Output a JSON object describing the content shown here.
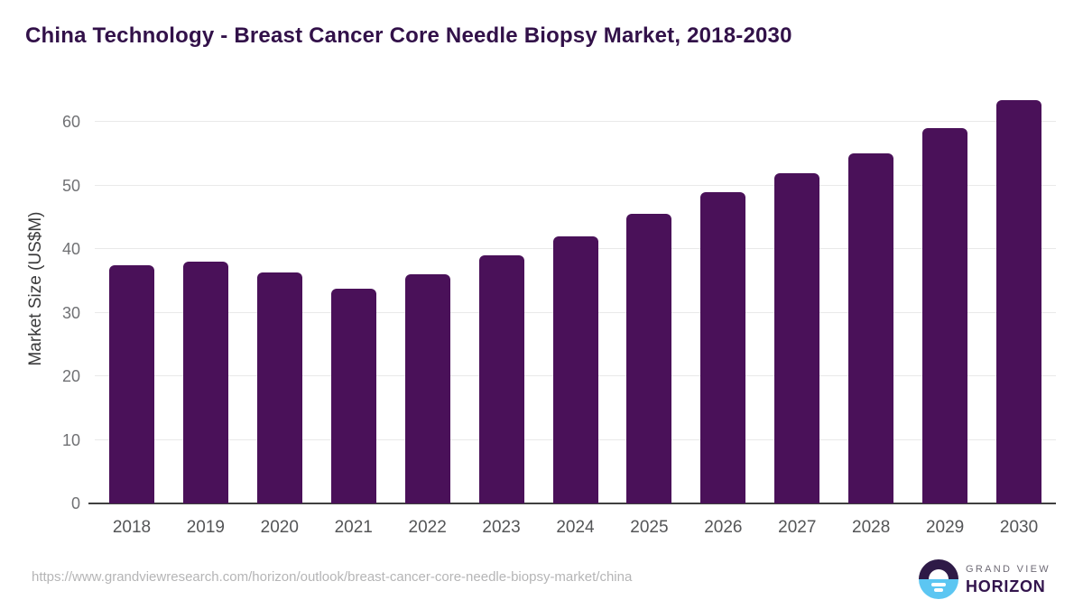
{
  "header": {
    "title": "China Technology - Breast Cancer Core Needle Biopsy Market, 2018-2030"
  },
  "chart_data": {
    "type": "bar",
    "title": "China Technology - Breast Cancer Core Needle Biopsy Market, 2018-2030",
    "categories": [
      "2018",
      "2019",
      "2020",
      "2021",
      "2022",
      "2023",
      "2024",
      "2025",
      "2026",
      "2027",
      "2028",
      "2029",
      "2030"
    ],
    "values": [
      37.5,
      38,
      36.3,
      33.8,
      36,
      39,
      42,
      45.5,
      49,
      52,
      55,
      59,
      63.5
    ],
    "xlabel": "",
    "ylabel": "Market Size (US$M)",
    "ylim": [
      0,
      65
    ],
    "yticks": [
      0,
      10,
      20,
      30,
      40,
      50,
      60
    ],
    "grid": true,
    "legend": false,
    "bar_color": "#4a1159"
  },
  "footer": {
    "source_url": "https://www.grandviewresearch.com/horizon/outlook/breast-cancer-core-needle-biopsy-market/china",
    "logo": {
      "line1": "GRAND VIEW",
      "line2": "HORIZON",
      "circle_top_color": "#2e1a47",
      "circle_bottom_color": "#5cc6f2"
    }
  },
  "colors": {
    "title": "#321149",
    "bar": "#4a1159",
    "gridline": "#e9e9e9",
    "axis": "#404040",
    "tick_label": "#707174",
    "url": "#b5b5b6"
  }
}
